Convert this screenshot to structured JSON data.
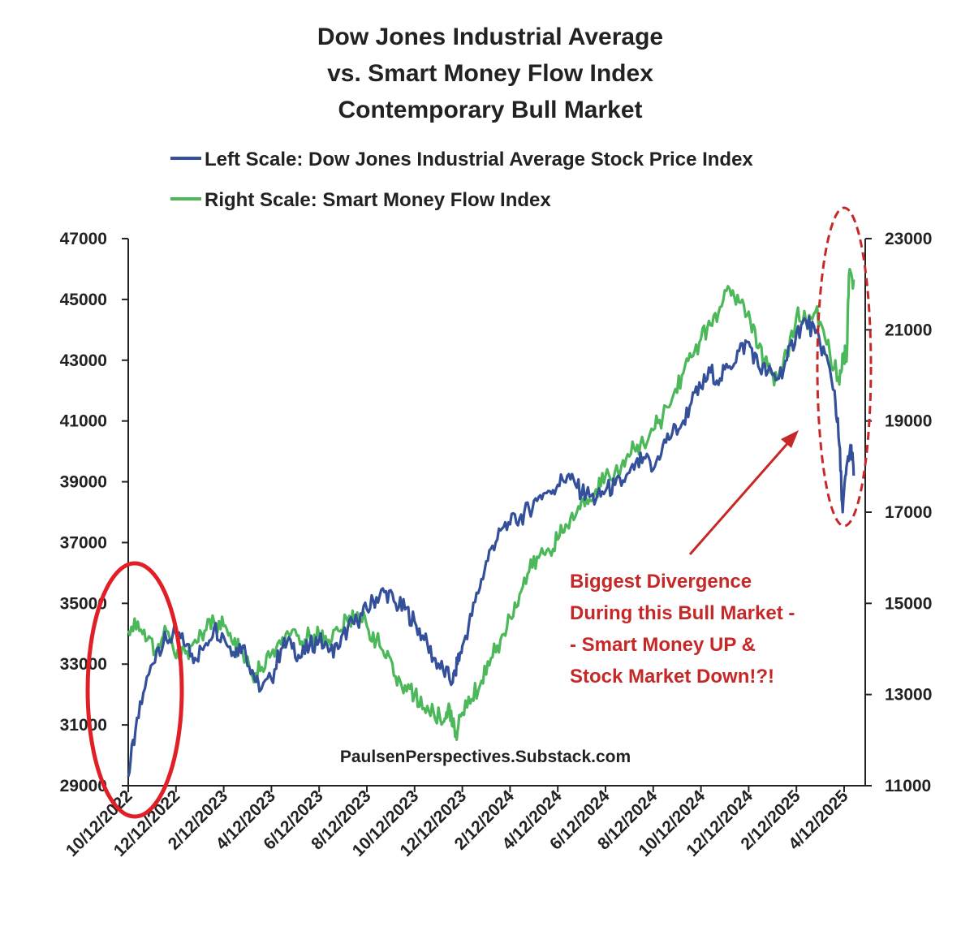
{
  "colors": {
    "dow": "#34509a",
    "smart_money": "#4cb85a",
    "annotation": "#c62828",
    "axis": "#222222"
  },
  "chart_data": {
    "type": "line",
    "title": [
      "Dow Jones Industrial Average",
      "vs. Smart Money Flow Index",
      "Contemporary Bull Market"
    ],
    "legend": [
      "Left Scale: Dow Jones Industrial Average Stock Price Index",
      "Right Scale: Smart Money Flow Index"
    ],
    "x_labels": [
      "10/12/2022",
      "12/12/2022",
      "2/12/2023",
      "4/12/2023",
      "6/12/2023",
      "8/12/2023",
      "10/12/2023",
      "12/12/2023",
      "2/12/2024",
      "4/12/2024",
      "6/12/2024",
      "8/12/2024",
      "10/12/2024",
      "12/12/2024",
      "2/12/2025",
      "4/12/2025"
    ],
    "y_left": {
      "range": [
        29000,
        47000
      ],
      "ticks": [
        29000,
        31000,
        33000,
        35000,
        37000,
        39000,
        41000,
        43000,
        45000,
        47000
      ]
    },
    "y_right": {
      "range": [
        11000,
        23000
      ],
      "ticks": [
        11000,
        13000,
        15000,
        17000,
        19000,
        21000,
        23000
      ]
    },
    "series": [
      {
        "name": "Dow Jones Industrial Average",
        "axis": "left",
        "points": [
          [
            0,
            29300
          ],
          [
            0.15,
            30800
          ],
          [
            0.35,
            32200
          ],
          [
            0.6,
            33500
          ],
          [
            0.8,
            33800
          ],
          [
            1.0,
            34000
          ],
          [
            1.2,
            33600
          ],
          [
            1.4,
            33200
          ],
          [
            1.6,
            33600
          ],
          [
            1.8,
            34200
          ],
          [
            2.0,
            33900
          ],
          [
            2.2,
            33400
          ],
          [
            2.4,
            33600
          ],
          [
            2.6,
            32800
          ],
          [
            2.75,
            32100
          ],
          [
            3.0,
            32500
          ],
          [
            3.2,
            33500
          ],
          [
            3.4,
            33800
          ],
          [
            3.6,
            33200
          ],
          [
            3.8,
            33600
          ],
          [
            4.0,
            33800
          ],
          [
            4.2,
            33400
          ],
          [
            4.4,
            33500
          ],
          [
            4.6,
            34200
          ],
          [
            4.8,
            34400
          ],
          [
            5.0,
            34800
          ],
          [
            5.2,
            35200
          ],
          [
            5.4,
            35400
          ],
          [
            5.6,
            35000
          ],
          [
            5.8,
            34800
          ],
          [
            6.0,
            34400
          ],
          [
            6.2,
            33800
          ],
          [
            6.4,
            33200
          ],
          [
            6.6,
            32800
          ],
          [
            6.8,
            32400
          ],
          [
            6.9,
            33000
          ],
          [
            7.0,
            33600
          ],
          [
            7.2,
            34600
          ],
          [
            7.4,
            35800
          ],
          [
            7.6,
            36800
          ],
          [
            7.8,
            37400
          ],
          [
            8.0,
            37600
          ],
          [
            8.2,
            37800
          ],
          [
            8.4,
            38100
          ],
          [
            8.6,
            38500
          ],
          [
            8.8,
            38700
          ],
          [
            9.0,
            38900
          ],
          [
            9.2,
            39200
          ],
          [
            9.4,
            38800
          ],
          [
            9.6,
            38600
          ],
          [
            9.8,
            38400
          ],
          [
            10.0,
            38700
          ],
          [
            10.2,
            38900
          ],
          [
            10.4,
            39000
          ],
          [
            10.6,
            39400
          ],
          [
            10.8,
            39800
          ],
          [
            11.0,
            39400
          ],
          [
            11.2,
            40200
          ],
          [
            11.4,
            40600
          ],
          [
            11.6,
            40900
          ],
          [
            11.8,
            41600
          ],
          [
            12.0,
            42100
          ],
          [
            12.2,
            42600
          ],
          [
            12.4,
            42400
          ],
          [
            12.6,
            42800
          ],
          [
            12.8,
            43300
          ],
          [
            13.0,
            43600
          ],
          [
            13.2,
            42800
          ],
          [
            13.4,
            42600
          ],
          [
            13.6,
            42400
          ],
          [
            13.8,
            43000
          ],
          [
            14.0,
            43900
          ],
          [
            14.2,
            44300
          ],
          [
            14.4,
            43900
          ],
          [
            14.6,
            43200
          ],
          [
            14.8,
            42000
          ],
          [
            14.9,
            40200
          ],
          [
            14.97,
            38000
          ],
          [
            15.05,
            39500
          ],
          [
            15.15,
            40200
          ],
          [
            15.2,
            39200
          ]
        ]
      },
      {
        "name": "Smart Money Flow Index",
        "axis": "right",
        "points": [
          [
            0,
            14400
          ],
          [
            0.2,
            14600
          ],
          [
            0.4,
            14200
          ],
          [
            0.6,
            14000
          ],
          [
            0.8,
            14400
          ],
          [
            1.0,
            13800
          ],
          [
            1.2,
            13900
          ],
          [
            1.4,
            14200
          ],
          [
            1.6,
            14400
          ],
          [
            1.8,
            14600
          ],
          [
            2.0,
            14500
          ],
          [
            2.2,
            14100
          ],
          [
            2.4,
            13900
          ],
          [
            2.6,
            13400
          ],
          [
            2.8,
            13600
          ],
          [
            3.0,
            13900
          ],
          [
            3.2,
            14100
          ],
          [
            3.4,
            14300
          ],
          [
            3.6,
            14100
          ],
          [
            3.8,
            14300
          ],
          [
            4.0,
            14300
          ],
          [
            4.2,
            14200
          ],
          [
            4.4,
            14400
          ],
          [
            4.6,
            14600
          ],
          [
            4.8,
            14800
          ],
          [
            5.0,
            14500
          ],
          [
            5.2,
            14200
          ],
          [
            5.4,
            13800
          ],
          [
            5.6,
            13400
          ],
          [
            5.8,
            13200
          ],
          [
            6.0,
            13000
          ],
          [
            6.2,
            12700
          ],
          [
            6.4,
            12600
          ],
          [
            6.6,
            12400
          ],
          [
            6.7,
            12700
          ],
          [
            6.8,
            12300
          ],
          [
            6.9,
            12200
          ],
          [
            7.0,
            12600
          ],
          [
            7.2,
            12900
          ],
          [
            7.4,
            13300
          ],
          [
            7.6,
            13800
          ],
          [
            7.8,
            14200
          ],
          [
            8.0,
            14700
          ],
          [
            8.2,
            15200
          ],
          [
            8.4,
            15700
          ],
          [
            8.6,
            16000
          ],
          [
            8.8,
            16200
          ],
          [
            9.0,
            16400
          ],
          [
            9.2,
            16700
          ],
          [
            9.4,
            17000
          ],
          [
            9.6,
            17300
          ],
          [
            9.8,
            17500
          ],
          [
            10.0,
            17800
          ],
          [
            10.2,
            17900
          ],
          [
            10.4,
            18000
          ],
          [
            10.6,
            18400
          ],
          [
            10.8,
            18500
          ],
          [
            11.0,
            18800
          ],
          [
            11.2,
            19100
          ],
          [
            11.4,
            19500
          ],
          [
            11.6,
            20000
          ],
          [
            11.8,
            20400
          ],
          [
            12.0,
            20800
          ],
          [
            12.2,
            21100
          ],
          [
            12.4,
            21500
          ],
          [
            12.6,
            21900
          ],
          [
            12.8,
            21600
          ],
          [
            13.0,
            21400
          ],
          [
            13.2,
            20600
          ],
          [
            13.4,
            20200
          ],
          [
            13.6,
            19900
          ],
          [
            13.8,
            20500
          ],
          [
            14.0,
            21300
          ],
          [
            14.2,
            21200
          ],
          [
            14.4,
            21400
          ],
          [
            14.6,
            20800
          ],
          [
            14.8,
            20200
          ],
          [
            14.9,
            19800
          ],
          [
            15.0,
            20500
          ],
          [
            15.05,
            20300
          ],
          [
            15.1,
            22200
          ],
          [
            15.2,
            22100
          ]
        ]
      }
    ],
    "annotation": [
      "Biggest Divergence",
      "During this Bull Market -",
      "- Smart Money UP &",
      "Stock Market Down!?!"
    ],
    "source": "PaulsenPerspectives.Substack.com"
  }
}
